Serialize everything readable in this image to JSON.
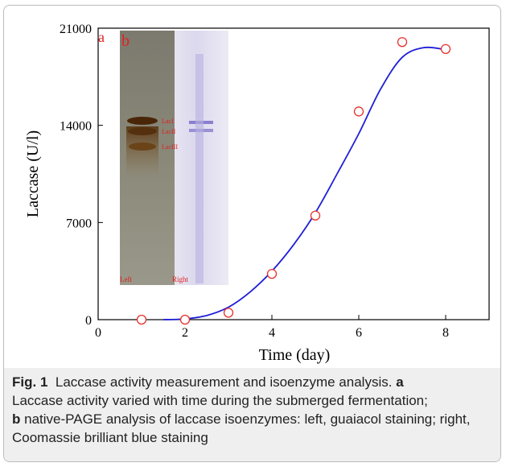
{
  "chart_data": {
    "type": "scatter",
    "xlabel": "Time (day)",
    "ylabel": "Laccase (U/l)",
    "xlim": [
      0,
      9
    ],
    "xticks": [
      0,
      2,
      4,
      6,
      8
    ],
    "ylim": [
      0,
      21000
    ],
    "yticks": [
      0,
      7000,
      14000,
      21000
    ],
    "series": [
      {
        "type": "scatter",
        "marker": "open-circle",
        "color": "#e8322c",
        "x": [
          1,
          2,
          3,
          4,
          5,
          6,
          7,
          8
        ],
        "values": [
          0,
          0,
          500,
          3300,
          7500,
          15000,
          20000,
          19500
        ]
      },
      {
        "type": "line",
        "color": "#1f1fd6",
        "x": [
          1.5,
          2,
          2.5,
          3,
          3.5,
          4,
          4.5,
          5,
          5.5,
          6,
          6.5,
          7,
          7.5,
          8
        ],
        "values": [
          0,
          50,
          300,
          900,
          2000,
          3500,
          5400,
          7700,
          10500,
          13400,
          16600,
          18900,
          19600,
          19450
        ]
      }
    ],
    "inset": {
      "panel_a": "a",
      "panel_b": "b",
      "bands": [
        "LacI",
        "LacII",
        "LacIII"
      ],
      "left": "Left",
      "right": "Right"
    }
  },
  "caption": {
    "label": "Fig. 1",
    "text_1": "Laccase activity measurement and isoenzyme analysis.",
    "a": "a",
    "text_2": "Laccase activity varied with time during the submerged fermentation;",
    "b": "b",
    "text_3": "native-PAGE analysis of laccase isoenzymes: left, guaiacol staining; right, Coomassie brilliant blue staining"
  }
}
